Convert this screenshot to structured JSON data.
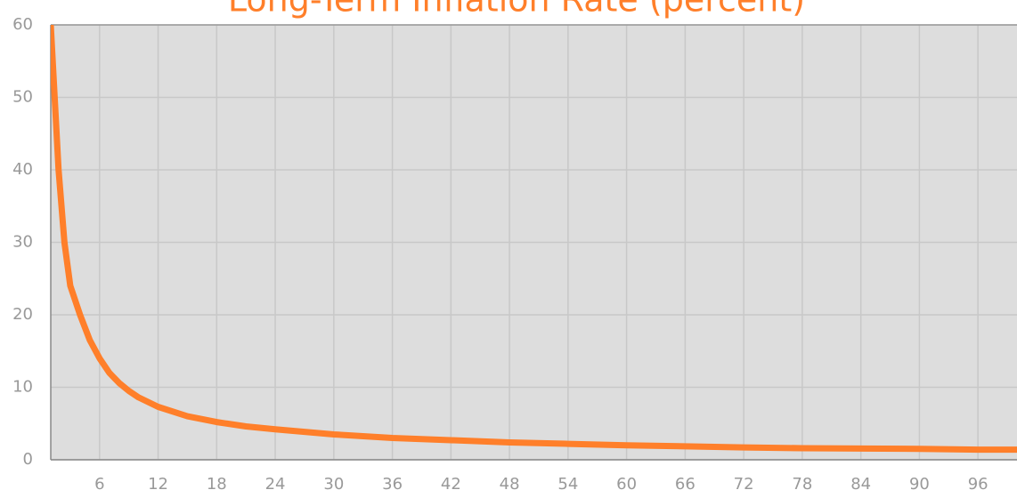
{
  "chart_data": {
    "type": "line",
    "title": "Long-Term Inflation Rate (percent)",
    "x": [
      1,
      1.4,
      1.8,
      2.4,
      3,
      4,
      5,
      6,
      7,
      8,
      9,
      10,
      12,
      15,
      18,
      21,
      24,
      30,
      36,
      42,
      48,
      54,
      60,
      66,
      72,
      78,
      84,
      90,
      96,
      100
    ],
    "series": [
      {
        "name": "Long-Term Inflation Rate",
        "color": "#ff7f2a",
        "values": [
          60,
          50,
          40,
          30,
          24,
          20,
          16.5,
          14,
          12,
          10.6,
          9.5,
          8.6,
          7.3,
          6,
          5.2,
          4.6,
          4.2,
          3.5,
          3,
          2.7,
          2.4,
          2.2,
          2,
          1.85,
          1.7,
          1.6,
          1.55,
          1.5,
          1.4,
          1.4
        ]
      }
    ],
    "xlim": [
      1,
      100
    ],
    "xticks": [
      6,
      12,
      18,
      24,
      30,
      36,
      42,
      48,
      54,
      60,
      66,
      72,
      78,
      84,
      90,
      96
    ],
    "ylim": [
      0,
      60
    ],
    "yticks": [
      0,
      10,
      20,
      30,
      40,
      50,
      60
    ],
    "grid": true
  }
}
